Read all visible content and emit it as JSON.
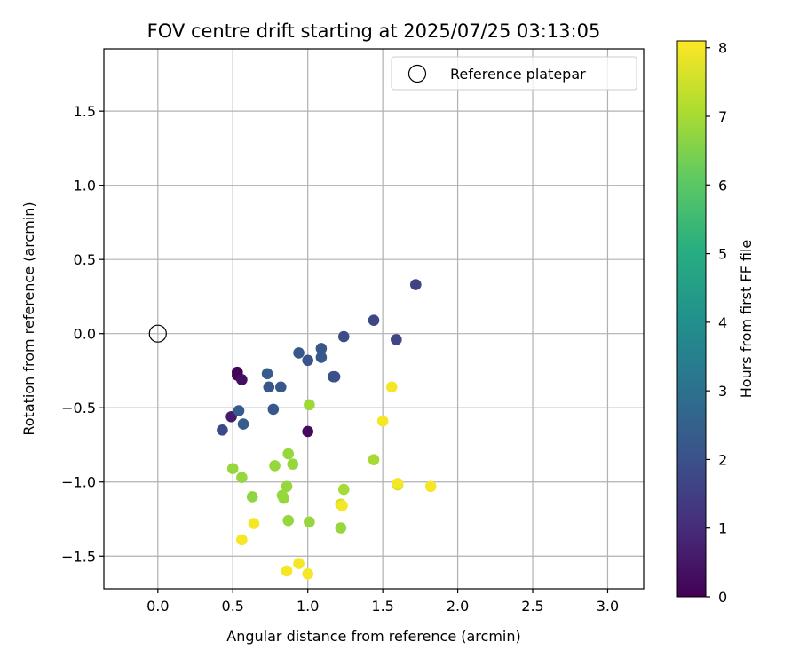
{
  "chart_data": {
    "type": "scatter",
    "title": "FOV centre drift starting at 2025/07/25 03:13:05",
    "xlabel": "Angular distance from reference (arcmin)",
    "ylabel": "Rotation from reference (arcmin)",
    "xlim": [
      -0.36,
      3.24
    ],
    "ylim": [
      -1.72,
      1.92
    ],
    "xticks": [
      0.0,
      0.5,
      1.0,
      1.5,
      2.0,
      2.5,
      3.0
    ],
    "xtick_labels": [
      "0.0",
      "0.5",
      "1.0",
      "1.5",
      "2.0",
      "2.5",
      "3.0"
    ],
    "yticks": [
      -1.5,
      -1.0,
      -0.5,
      0.0,
      0.5,
      1.0,
      1.5
    ],
    "ytick_labels": [
      "−1.5",
      "−1.0",
      "−0.5",
      "0.0",
      "0.5",
      "1.0",
      "1.5"
    ],
    "grid": true,
    "legend": {
      "placement": "top-right",
      "entries": [
        "Reference platepar"
      ]
    },
    "reference_point": {
      "x": 0.0,
      "y": 0.0,
      "label": "Reference platepar"
    },
    "colorbar": {
      "label": "Hours from first FF file",
      "colormap": "viridis",
      "range": [
        0,
        8.1
      ],
      "ticks": [
        0,
        1,
        2,
        3,
        4,
        5,
        6,
        7,
        8
      ],
      "tick_labels": [
        "0",
        "1",
        "2",
        "3",
        "4",
        "5",
        "6",
        "7",
        "8"
      ]
    },
    "points": [
      {
        "x": 0.53,
        "y": -0.26,
        "c": 0.05
      },
      {
        "x": 0.53,
        "y": -0.28,
        "c": 0.1
      },
      {
        "x": 0.56,
        "y": -0.31,
        "c": 0.3
      },
      {
        "x": 0.49,
        "y": -0.56,
        "c": 0.6
      },
      {
        "x": 1.0,
        "y": -0.66,
        "c": 0.2
      },
      {
        "x": 0.43,
        "y": -0.65,
        "c": 1.8
      },
      {
        "x": 0.54,
        "y": -0.52,
        "c": 2.3
      },
      {
        "x": 0.57,
        "y": -0.61,
        "c": 2.3
      },
      {
        "x": 0.73,
        "y": -0.27,
        "c": 2.3
      },
      {
        "x": 0.74,
        "y": -0.36,
        "c": 2.2
      },
      {
        "x": 0.82,
        "y": -0.36,
        "c": 2.2
      },
      {
        "x": 0.77,
        "y": -0.51,
        "c": 2.2
      },
      {
        "x": 0.94,
        "y": -0.13,
        "c": 2.2
      },
      {
        "x": 1.0,
        "y": -0.18,
        "c": 2.1
      },
      {
        "x": 1.09,
        "y": -0.1,
        "c": 2.2
      },
      {
        "x": 1.09,
        "y": -0.16,
        "c": 2.2
      },
      {
        "x": 1.17,
        "y": -0.29,
        "c": 2.0
      },
      {
        "x": 1.18,
        "y": -0.29,
        "c": 2.0
      },
      {
        "x": 1.24,
        "y": -0.02,
        "c": 1.9
      },
      {
        "x": 1.44,
        "y": 0.09,
        "c": 1.7
      },
      {
        "x": 1.59,
        "y": -0.04,
        "c": 1.7
      },
      {
        "x": 1.72,
        "y": 0.33,
        "c": 1.6
      },
      {
        "x": 1.01,
        "y": -0.48,
        "c": 6.9
      },
      {
        "x": 0.5,
        "y": -0.91,
        "c": 6.8
      },
      {
        "x": 0.56,
        "y": -0.97,
        "c": 6.8
      },
      {
        "x": 0.63,
        "y": -1.1,
        "c": 6.7
      },
      {
        "x": 0.78,
        "y": -0.89,
        "c": 6.8
      },
      {
        "x": 0.87,
        "y": -0.81,
        "c": 6.8
      },
      {
        "x": 0.9,
        "y": -0.88,
        "c": 6.8
      },
      {
        "x": 0.86,
        "y": -1.03,
        "c": 6.8
      },
      {
        "x": 0.83,
        "y": -1.09,
        "c": 6.8
      },
      {
        "x": 0.84,
        "y": -1.11,
        "c": 6.8
      },
      {
        "x": 0.87,
        "y": -1.26,
        "c": 6.8
      },
      {
        "x": 1.01,
        "y": -1.27,
        "c": 6.8
      },
      {
        "x": 1.22,
        "y": -1.31,
        "c": 6.8
      },
      {
        "x": 1.24,
        "y": -1.05,
        "c": 7.0
      },
      {
        "x": 1.44,
        "y": -0.85,
        "c": 7.0
      },
      {
        "x": 1.22,
        "y": -1.15,
        "c": 7.5
      },
      {
        "x": 1.6,
        "y": -1.02,
        "c": 7.5
      },
      {
        "x": 1.56,
        "y": -0.36,
        "c": 8.0
      },
      {
        "x": 1.5,
        "y": -0.59,
        "c": 8.0
      },
      {
        "x": 1.23,
        "y": -1.16,
        "c": 8.0
      },
      {
        "x": 1.6,
        "y": -1.01,
        "c": 8.0
      },
      {
        "x": 1.82,
        "y": -1.03,
        "c": 8.0
      },
      {
        "x": 0.64,
        "y": -1.28,
        "c": 8.0
      },
      {
        "x": 0.56,
        "y": -1.39,
        "c": 8.0
      },
      {
        "x": 0.86,
        "y": -1.6,
        "c": 8.0
      },
      {
        "x": 0.94,
        "y": -1.55,
        "c": 8.0
      },
      {
        "x": 1.0,
        "y": -1.62,
        "c": 8.0
      }
    ]
  }
}
